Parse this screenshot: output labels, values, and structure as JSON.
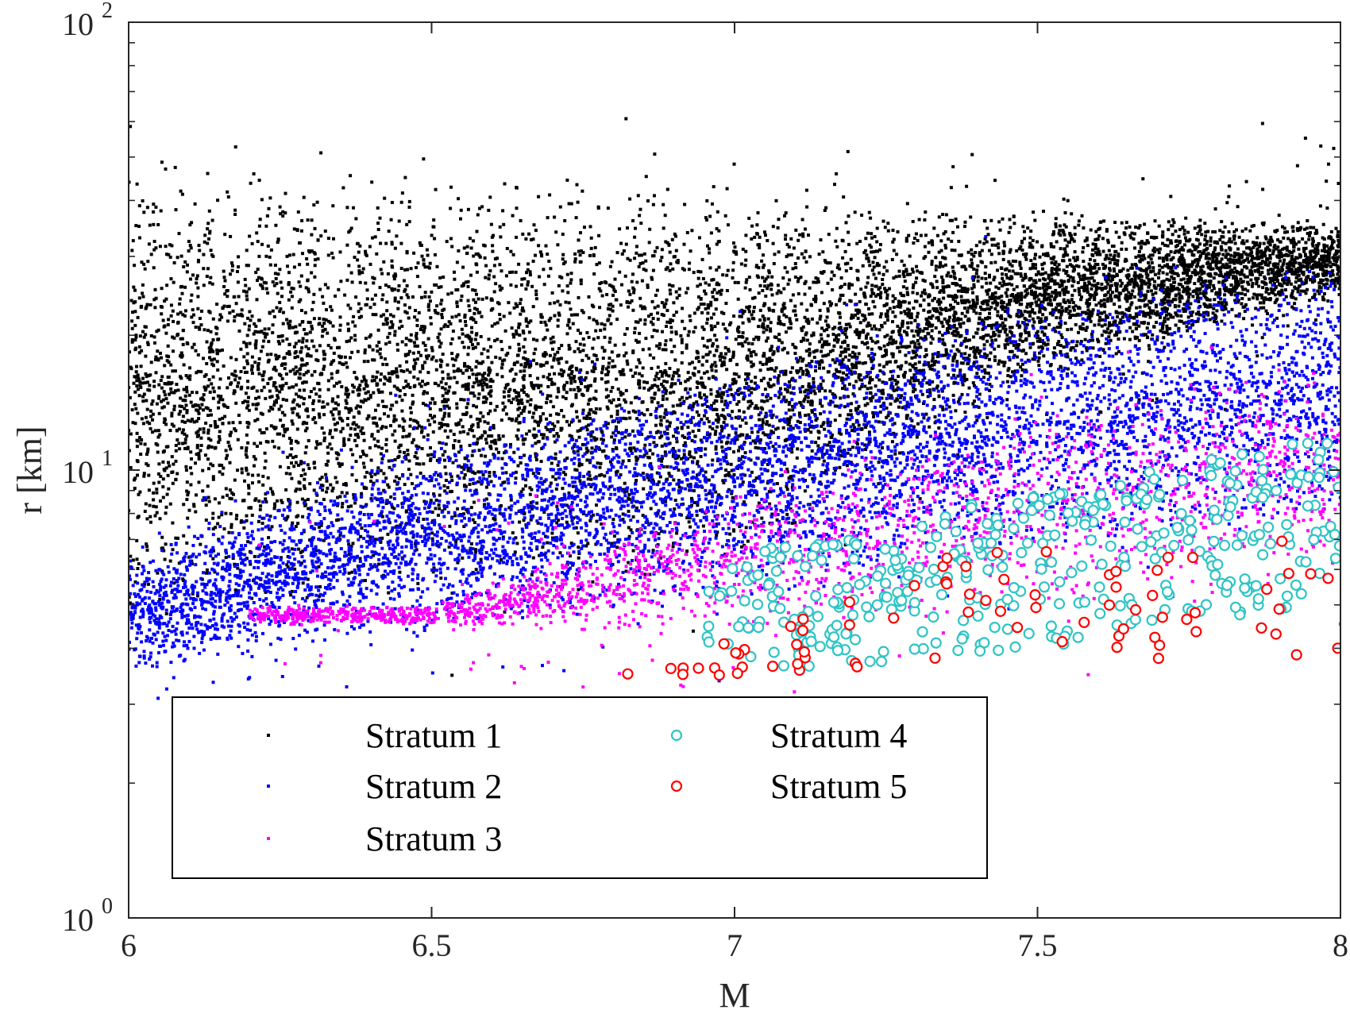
{
  "chart_data": {
    "type": "scatter",
    "title": "",
    "xlabel": "M",
    "ylabel": "r [km]",
    "xlim": [
      6,
      8
    ],
    "ylim": [
      1,
      100
    ],
    "yscale": "log",
    "grid": false,
    "legend_placement": "bottom-left",
    "legend_columns": 2,
    "x_ticks": [
      {
        "value": 6,
        "label": "6"
      },
      {
        "value": 6.5,
        "label": "6.5"
      },
      {
        "value": 7,
        "label": "7"
      },
      {
        "value": 7.5,
        "label": "7.5"
      },
      {
        "value": 8,
        "label": "8"
      }
    ],
    "y_ticks": [
      {
        "value": 1,
        "base": "10",
        "exp": "0"
      },
      {
        "value": 10,
        "base": "10",
        "exp": "1"
      },
      {
        "value": 100,
        "base": "10",
        "exp": "2"
      }
    ],
    "y_minor_ticks": [
      2,
      3,
      4,
      5,
      6,
      7,
      8,
      9,
      20,
      30,
      40,
      50,
      60,
      70,
      80,
      90
    ],
    "series": [
      {
        "name": "Stratum 1",
        "marker": "dot",
        "color": "#000000",
        "count": 9000,
        "region": {
          "m_range": [
            6,
            8
          ],
          "r_low_at": [
            [
              6,
              4.5
            ],
            [
              7,
              6
            ],
            [
              7.5,
              16
            ],
            [
              8,
              24
            ]
          ],
          "r_high_at": [
            [
              6,
              50
            ],
            [
              7,
              44
            ],
            [
              7.5,
              38
            ],
            [
              8,
              36
            ]
          ]
        }
      },
      {
        "name": "Stratum 2",
        "marker": "dot",
        "color": "#0000ff",
        "count": 6000,
        "region": {
          "m_range": [
            6,
            8
          ],
          "r_low_at": [
            [
              6,
              3.5
            ],
            [
              6.5,
              4.3
            ],
            [
              7,
              5
            ],
            [
              7.5,
              6.5
            ],
            [
              8,
              7.5
            ]
          ],
          "r_high_at": [
            [
              6,
              6.5
            ],
            [
              6.5,
              12
            ],
            [
              7,
              17
            ],
            [
              7.5,
              24
            ],
            [
              8,
              30
            ]
          ]
        }
      },
      {
        "name": "Stratum 3",
        "marker": "dot",
        "color": "#ff00ff",
        "count": 2200,
        "region": {
          "m_range": [
            6.2,
            8
          ],
          "r_low_at": [
            [
              6.5,
              4.5
            ],
            [
              7,
              4.2
            ],
            [
              7.5,
              4.8
            ],
            [
              8,
              5.5
            ]
          ],
          "r_high_at": [
            [
              6.5,
              5
            ],
            [
              7,
              9
            ],
            [
              7.5,
              14
            ],
            [
              8,
              18
            ]
          ]
        }
      },
      {
        "name": "Stratum 4",
        "marker": "circle",
        "color": "#2ec4c4",
        "count": 380,
        "region": {
          "m_range": [
            6.95,
            8
          ],
          "r_low_at": [
            [
              7,
              3.5
            ],
            [
              7.5,
              4
            ],
            [
              8,
              5
            ]
          ],
          "r_high_at": [
            [
              7,
              6.5
            ],
            [
              7.5,
              9
            ],
            [
              8,
              12
            ]
          ]
        }
      },
      {
        "name": "Stratum 5",
        "marker": "circle",
        "color": "#ff0000",
        "count": 75,
        "region": {
          "m_range": [
            6.8,
            8
          ],
          "r_low_at": [
            [
              6.8,
              3.2
            ],
            [
              7.5,
              4
            ],
            [
              8,
              3.5
            ]
          ],
          "r_high_at": [
            [
              6.8,
              3.5
            ],
            [
              7.5,
              7.5
            ],
            [
              8,
              8.5
            ]
          ]
        }
      }
    ]
  }
}
